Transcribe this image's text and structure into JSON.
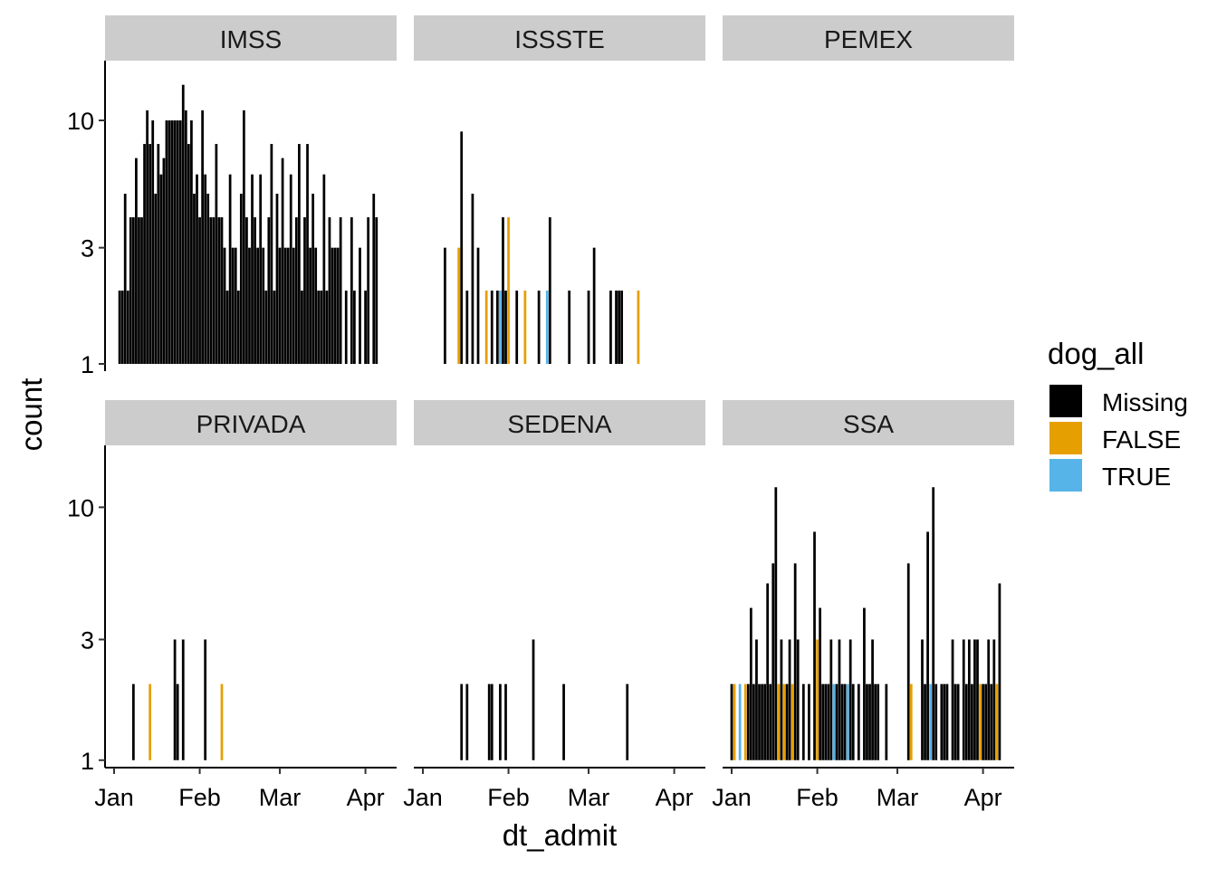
{
  "chart_data": {
    "type": "bar",
    "xlabel": "dt_admit",
    "ylabel": "count",
    "y_scale": "log",
    "y_ticks": [
      "1",
      "3",
      "10"
    ],
    "x_ticks": [
      "Jan",
      "Feb",
      "Mar",
      "Apr"
    ],
    "x_range": [
      "2020-01-01",
      "2020-04-09"
    ],
    "legend": {
      "title": "dog_all",
      "position": "right",
      "entries": [
        {
          "label": "Missing",
          "color": "#000000"
        },
        {
          "label": "FALSE",
          "color": "#E69F00"
        },
        {
          "label": "TRUE",
          "color": "#56B4E9"
        }
      ]
    },
    "facets": [
      {
        "name": "IMSS",
        "bars": [
          [
            "2020-01-03",
            2,
            "Missing"
          ],
          [
            "2020-01-04",
            2,
            "Missing"
          ],
          [
            "2020-01-05",
            5,
            "Missing"
          ],
          [
            "2020-01-06",
            2,
            "Missing"
          ],
          [
            "2020-01-07",
            4,
            "Missing"
          ],
          [
            "2020-01-08",
            4,
            "Missing"
          ],
          [
            "2020-01-09",
            7,
            "Missing"
          ],
          [
            "2020-01-10",
            4,
            "Missing"
          ],
          [
            "2020-01-11",
            4,
            "Missing"
          ],
          [
            "2020-01-12",
            8,
            "Missing"
          ],
          [
            "2020-01-13",
            11,
            "Missing"
          ],
          [
            "2020-01-14",
            8,
            "Missing"
          ],
          [
            "2020-01-15",
            10,
            "Missing"
          ],
          [
            "2020-01-16",
            5,
            "Missing"
          ],
          [
            "2020-01-17",
            8,
            "Missing"
          ],
          [
            "2020-01-18",
            6,
            "Missing"
          ],
          [
            "2020-01-19",
            7,
            "Missing"
          ],
          [
            "2020-01-20",
            10,
            "Missing"
          ],
          [
            "2020-01-21",
            10,
            "Missing"
          ],
          [
            "2020-01-22",
            10,
            "Missing"
          ],
          [
            "2020-01-23",
            10,
            "Missing"
          ],
          [
            "2020-01-24",
            10,
            "Missing"
          ],
          [
            "2020-01-25",
            10,
            "Missing"
          ],
          [
            "2020-01-26",
            14,
            "Missing"
          ],
          [
            "2020-01-27",
            11,
            "Missing"
          ],
          [
            "2020-01-28",
            8,
            "Missing"
          ],
          [
            "2020-01-29",
            10,
            "Missing"
          ],
          [
            "2020-01-30",
            5,
            "Missing"
          ],
          [
            "2020-01-31",
            6,
            "Missing"
          ],
          [
            "2020-02-01",
            4,
            "Missing"
          ],
          [
            "2020-02-02",
            11,
            "Missing"
          ],
          [
            "2020-02-03",
            6,
            "Missing"
          ],
          [
            "2020-02-04",
            5,
            "Missing"
          ],
          [
            "2020-02-05",
            4,
            "Missing"
          ],
          [
            "2020-02-06",
            4,
            "Missing"
          ],
          [
            "2020-02-07",
            8,
            "Missing"
          ],
          [
            "2020-02-08",
            4,
            "Missing"
          ],
          [
            "2020-02-09",
            4,
            "Missing"
          ],
          [
            "2020-02-10",
            3,
            "Missing"
          ],
          [
            "2020-02-11",
            2,
            "Missing"
          ],
          [
            "2020-02-12",
            6,
            "Missing"
          ],
          [
            "2020-02-13",
            3,
            "Missing"
          ],
          [
            "2020-02-14",
            3,
            "Missing"
          ],
          [
            "2020-02-15",
            2,
            "Missing"
          ],
          [
            "2020-02-16",
            5,
            "Missing"
          ],
          [
            "2020-02-17",
            11,
            "Missing"
          ],
          [
            "2020-02-18",
            4,
            "Missing"
          ],
          [
            "2020-02-19",
            3,
            "Missing"
          ],
          [
            "2020-02-20",
            6,
            "Missing"
          ],
          [
            "2020-02-21",
            4,
            "Missing"
          ],
          [
            "2020-02-22",
            3,
            "Missing"
          ],
          [
            "2020-02-23",
            6,
            "Missing"
          ],
          [
            "2020-02-24",
            3,
            "Missing"
          ],
          [
            "2020-02-25",
            2,
            "Missing"
          ],
          [
            "2020-02-26",
            4,
            "Missing"
          ],
          [
            "2020-02-27",
            8,
            "Missing"
          ],
          [
            "2020-02-28",
            2,
            "Missing"
          ],
          [
            "2020-02-29",
            5,
            "Missing"
          ],
          [
            "2020-03-01",
            3,
            "Missing"
          ],
          [
            "2020-03-02",
            7,
            "Missing"
          ],
          [
            "2020-03-03",
            3,
            "Missing"
          ],
          [
            "2020-03-04",
            3,
            "Missing"
          ],
          [
            "2020-03-05",
            6,
            "Missing"
          ],
          [
            "2020-03-06",
            3,
            "Missing"
          ],
          [
            "2020-03-07",
            4,
            "Missing"
          ],
          [
            "2020-03-08",
            8,
            "Missing"
          ],
          [
            "2020-03-09",
            2,
            "Missing"
          ],
          [
            "2020-03-10",
            4,
            "Missing"
          ],
          [
            "2020-03-11",
            8,
            "Missing"
          ],
          [
            "2020-03-12",
            3,
            "Missing"
          ],
          [
            "2020-03-13",
            5,
            "Missing"
          ],
          [
            "2020-03-14",
            3,
            "Missing"
          ],
          [
            "2020-03-15",
            2,
            "Missing"
          ],
          [
            "2020-03-16",
            2,
            "Missing"
          ],
          [
            "2020-03-17",
            6,
            "Missing"
          ],
          [
            "2020-03-18",
            2,
            "Missing"
          ],
          [
            "2020-03-19",
            4,
            "Missing"
          ],
          [
            "2020-03-20",
            3,
            "Missing"
          ],
          [
            "2020-03-21",
            3,
            "Missing"
          ],
          [
            "2020-03-22",
            3,
            "Missing"
          ],
          [
            "2020-03-23",
            4,
            "Missing"
          ],
          [
            "2020-03-25",
            2,
            "Missing"
          ],
          [
            "2020-03-27",
            4,
            "Missing"
          ],
          [
            "2020-03-28",
            2,
            "Missing"
          ],
          [
            "2020-03-30",
            3,
            "Missing"
          ],
          [
            "2020-04-01",
            2,
            "Missing"
          ],
          [
            "2020-04-02",
            4,
            "Missing"
          ],
          [
            "2020-04-04",
            5,
            "Missing"
          ],
          [
            "2020-04-05",
            4,
            "Missing"
          ]
        ]
      },
      {
        "name": "ISSSTE",
        "bars": [
          [
            "2020-01-09",
            3,
            "Missing"
          ],
          [
            "2020-01-14",
            3,
            "FALSE"
          ],
          [
            "2020-01-15",
            3,
            "FALSE"
          ],
          [
            "2020-01-15",
            9,
            "Missing"
          ],
          [
            "2020-01-17",
            2,
            "Missing"
          ],
          [
            "2020-01-19",
            5,
            "Missing"
          ],
          [
            "2020-01-21",
            3,
            "Missing"
          ],
          [
            "2020-01-24",
            2,
            "FALSE"
          ],
          [
            "2020-01-26",
            2,
            "Missing"
          ],
          [
            "2020-01-28",
            2,
            "Missing"
          ],
          [
            "2020-01-29",
            2,
            "TRUE"
          ],
          [
            "2020-01-30",
            4,
            "Missing"
          ],
          [
            "2020-01-31",
            2,
            "Missing"
          ],
          [
            "2020-02-01",
            4,
            "FALSE"
          ],
          [
            "2020-02-04",
            2,
            "Missing"
          ],
          [
            "2020-02-07",
            2,
            "FALSE"
          ],
          [
            "2020-02-12",
            2,
            "Missing"
          ],
          [
            "2020-02-15",
            2,
            "TRUE"
          ],
          [
            "2020-02-16",
            4,
            "Missing"
          ],
          [
            "2020-02-23",
            2,
            "Missing"
          ],
          [
            "2020-03-01",
            2,
            "Missing"
          ],
          [
            "2020-03-03",
            3,
            "Missing"
          ],
          [
            "2020-03-09",
            2,
            "Missing"
          ],
          [
            "2020-03-11",
            2,
            "Missing"
          ],
          [
            "2020-03-12",
            2,
            "Missing"
          ],
          [
            "2020-03-13",
            2,
            "Missing"
          ],
          [
            "2020-03-19",
            2,
            "FALSE"
          ]
        ]
      },
      {
        "name": "PEMEX",
        "bars": []
      },
      {
        "name": "PRIVADA",
        "bars": [
          [
            "2020-01-08",
            2,
            "Missing"
          ],
          [
            "2020-01-14",
            2,
            "FALSE"
          ],
          [
            "2020-01-23",
            3,
            "Missing"
          ],
          [
            "2020-01-24",
            2,
            "Missing"
          ],
          [
            "2020-01-26",
            3,
            "Missing"
          ],
          [
            "2020-02-03",
            3,
            "Missing"
          ],
          [
            "2020-02-09",
            2,
            "FALSE"
          ]
        ]
      },
      {
        "name": "SEDENA",
        "bars": [
          [
            "2020-01-15",
            2,
            "Missing"
          ],
          [
            "2020-01-17",
            2,
            "Missing"
          ],
          [
            "2020-01-25",
            2,
            "Missing"
          ],
          [
            "2020-01-26",
            2,
            "Missing"
          ],
          [
            "2020-01-29",
            2,
            "Missing"
          ],
          [
            "2020-01-31",
            2,
            "Missing"
          ],
          [
            "2020-02-10",
            3,
            "Missing"
          ],
          [
            "2020-02-21",
            2,
            "Missing"
          ],
          [
            "2020-03-15",
            2,
            "Missing"
          ]
        ]
      },
      {
        "name": "SSA",
        "bars": [
          [
            "2020-01-01",
            2,
            "Missing"
          ],
          [
            "2020-01-02",
            2,
            "FALSE"
          ],
          [
            "2020-01-04",
            2,
            "TRUE"
          ],
          [
            "2020-01-06",
            2,
            "FALSE"
          ],
          [
            "2020-01-07",
            2,
            "Missing"
          ],
          [
            "2020-01-08",
            4,
            "Missing"
          ],
          [
            "2020-01-09",
            2,
            "Missing"
          ],
          [
            "2020-01-10",
            3,
            "Missing"
          ],
          [
            "2020-01-11",
            2,
            "Missing"
          ],
          [
            "2020-01-12",
            2,
            "Missing"
          ],
          [
            "2020-01-13",
            2,
            "Missing"
          ],
          [
            "2020-01-14",
            5,
            "Missing"
          ],
          [
            "2020-01-15",
            2,
            "Missing"
          ],
          [
            "2020-01-16",
            6,
            "Missing"
          ],
          [
            "2020-01-17",
            12,
            "Missing"
          ],
          [
            "2020-01-18",
            2,
            "FALSE"
          ],
          [
            "2020-01-19",
            3,
            "Missing"
          ],
          [
            "2020-01-20",
            2,
            "FALSE"
          ],
          [
            "2020-01-21",
            2,
            "Missing"
          ],
          [
            "2020-01-22",
            3,
            "Missing"
          ],
          [
            "2020-01-23",
            2,
            "FALSE"
          ],
          [
            "2020-01-24",
            6,
            "Missing"
          ],
          [
            "2020-01-25",
            3,
            "Missing"
          ],
          [
            "2020-01-27",
            2,
            "Missing"
          ],
          [
            "2020-01-29",
            2,
            "Missing"
          ],
          [
            "2020-01-31",
            8,
            "Missing"
          ],
          [
            "2020-02-01",
            3,
            "FALSE"
          ],
          [
            "2020-02-02",
            4,
            "Missing"
          ],
          [
            "2020-02-03",
            2,
            "Missing"
          ],
          [
            "2020-02-04",
            2,
            "Missing"
          ],
          [
            "2020-02-05",
            2,
            "Missing"
          ],
          [
            "2020-02-06",
            3,
            "Missing"
          ],
          [
            "2020-02-07",
            2,
            "TRUE"
          ],
          [
            "2020-02-08",
            2,
            "Missing"
          ],
          [
            "2020-02-09",
            3,
            "Missing"
          ],
          [
            "2020-02-10",
            2,
            "Missing"
          ],
          [
            "2020-02-11",
            2,
            "Missing"
          ],
          [
            "2020-02-12",
            2,
            "TRUE"
          ],
          [
            "2020-02-13",
            3,
            "Missing"
          ],
          [
            "2020-02-14",
            2,
            "Missing"
          ],
          [
            "2020-02-16",
            2,
            "Missing"
          ],
          [
            "2020-02-18",
            4,
            "Missing"
          ],
          [
            "2020-02-19",
            2,
            "Missing"
          ],
          [
            "2020-02-20",
            2,
            "Missing"
          ],
          [
            "2020-02-21",
            3,
            "Missing"
          ],
          [
            "2020-02-22",
            2,
            "Missing"
          ],
          [
            "2020-02-23",
            2,
            "Missing"
          ],
          [
            "2020-02-26",
            2,
            "Missing"
          ],
          [
            "2020-03-05",
            6,
            "Missing"
          ],
          [
            "2020-03-06",
            2,
            "FALSE"
          ],
          [
            "2020-03-10",
            3,
            "Missing"
          ],
          [
            "2020-03-11",
            2,
            "Missing"
          ],
          [
            "2020-03-12",
            8,
            "Missing"
          ],
          [
            "2020-03-13",
            2,
            "TRUE"
          ],
          [
            "2020-03-14",
            12,
            "Missing"
          ],
          [
            "2020-03-15",
            2,
            "Missing"
          ],
          [
            "2020-03-17",
            2,
            "Missing"
          ],
          [
            "2020-03-18",
            2,
            "Missing"
          ],
          [
            "2020-03-19",
            2,
            "Missing"
          ],
          [
            "2020-03-21",
            3,
            "Missing"
          ],
          [
            "2020-03-22",
            2,
            "Missing"
          ],
          [
            "2020-03-23",
            2,
            "Missing"
          ],
          [
            "2020-03-25",
            3,
            "Missing"
          ],
          [
            "2020-03-26",
            2,
            "Missing"
          ],
          [
            "2020-03-27",
            3,
            "Missing"
          ],
          [
            "2020-03-28",
            2,
            "Missing"
          ],
          [
            "2020-03-29",
            3,
            "Missing"
          ],
          [
            "2020-03-30",
            3,
            "Missing"
          ],
          [
            "2020-03-31",
            2,
            "FALSE"
          ],
          [
            "2020-04-01",
            2,
            "Missing"
          ],
          [
            "2020-04-02",
            2,
            "Missing"
          ],
          [
            "2020-04-03",
            3,
            "Missing"
          ],
          [
            "2020-04-04",
            2,
            "Missing"
          ],
          [
            "2020-04-05",
            3,
            "Missing"
          ],
          [
            "2020-04-06",
            2,
            "FALSE"
          ],
          [
            "2020-04-07",
            5,
            "Missing"
          ]
        ]
      }
    ]
  }
}
